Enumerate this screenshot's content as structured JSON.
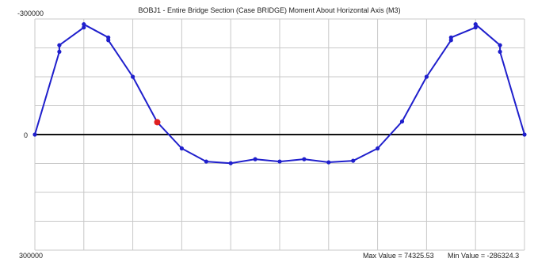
{
  "chart_data": {
    "type": "line",
    "title": "BOBJ1 - Entire Bridge Section  (Case BRIDGE)  Moment About Horizontal Axis  (M3)",
    "y_top_label": "-300000",
    "y_zero_label": "0",
    "y_bottom_label": "300000",
    "ylim": [
      -300000,
      300000
    ],
    "y_axis_inverted": true,
    "x_range": [
      0,
      100
    ],
    "grid": true,
    "series": [
      {
        "color": "#1f1fcc",
        "points": [
          {
            "x": 0,
            "y": 0
          },
          {
            "x": 5,
            "y": -215000
          },
          {
            "x": 5,
            "y": -232000
          },
          {
            "x": 10,
            "y": -278000
          },
          {
            "x": 10,
            "y": -286324.3
          },
          {
            "x": 15,
            "y": -252000
          },
          {
            "x": 15,
            "y": -245000
          },
          {
            "x": 20,
            "y": -150000
          },
          {
            "x": 25,
            "y": -32000
          },
          {
            "x": 30,
            "y": 36000
          },
          {
            "x": 35,
            "y": 70000
          },
          {
            "x": 40,
            "y": 74325.53
          },
          {
            "x": 45,
            "y": 64000
          },
          {
            "x": 50,
            "y": 70000
          },
          {
            "x": 55,
            "y": 64000
          },
          {
            "x": 60,
            "y": 72000
          },
          {
            "x": 65,
            "y": 68000
          },
          {
            "x": 70,
            "y": 36000
          },
          {
            "x": 75,
            "y": -34000
          },
          {
            "x": 80,
            "y": -150000
          },
          {
            "x": 85,
            "y": -245000
          },
          {
            "x": 85,
            "y": -252000
          },
          {
            "x": 90,
            "y": -278000
          },
          {
            "x": 90,
            "y": -286324.3
          },
          {
            "x": 95,
            "y": -232000
          },
          {
            "x": 95,
            "y": -215000
          },
          {
            "x": 100,
            "y": 0
          }
        ]
      }
    ],
    "highlight": {
      "x": 25,
      "y": -32000,
      "color": "#e02020"
    },
    "zero_line_color": "#111111",
    "max_label": "Max Value = 74325.53",
    "min_label": "Min Value = -286324.3"
  }
}
